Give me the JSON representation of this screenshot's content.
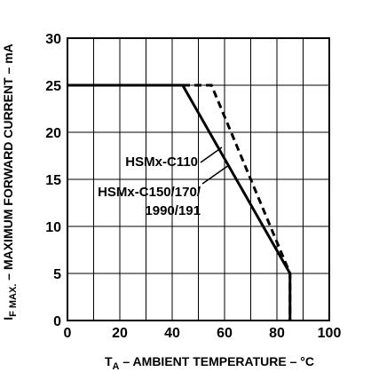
{
  "chart_data": {
    "type": "line",
    "xlabel_main": "T",
    "xlabel_sub": "A",
    "xlabel_rest": " – AMBIENT TEMPERATURE – °C",
    "ylabel_main": "I",
    "ylabel_sub": "F MAX.",
    "ylabel_rest": " – MAXIMUM FORWARD CURRENT – mA",
    "xlim": [
      0,
      100
    ],
    "ylim": [
      0,
      30
    ],
    "x_ticks": [
      "0",
      "20",
      "40",
      "60",
      "80",
      "100"
    ],
    "y_ticks": [
      "0",
      "5",
      "10",
      "15",
      "20",
      "25",
      "30"
    ],
    "x_tick_values": [
      0,
      20,
      40,
      60,
      80,
      100
    ],
    "y_tick_values": [
      0,
      5,
      10,
      15,
      20,
      25,
      30
    ],
    "grid": true,
    "series": [
      {
        "name": "HSMx-C110",
        "style": "dashed",
        "color": "#000000",
        "x": [
          0,
          55,
          85,
          85
        ],
        "y": [
          25,
          25,
          5,
          0
        ]
      },
      {
        "name": "HSMx-C150/170/ 1990/191",
        "style": "solid",
        "color": "#000000",
        "x": [
          0,
          44,
          85,
          85
        ],
        "y": [
          25,
          25,
          5,
          0
        ]
      }
    ],
    "annotations": [
      {
        "text": "HSMx-C110",
        "series": 0
      },
      {
        "lines": [
          "HSMx-C150/170/",
          "1990/191"
        ],
        "series": 1
      }
    ]
  }
}
